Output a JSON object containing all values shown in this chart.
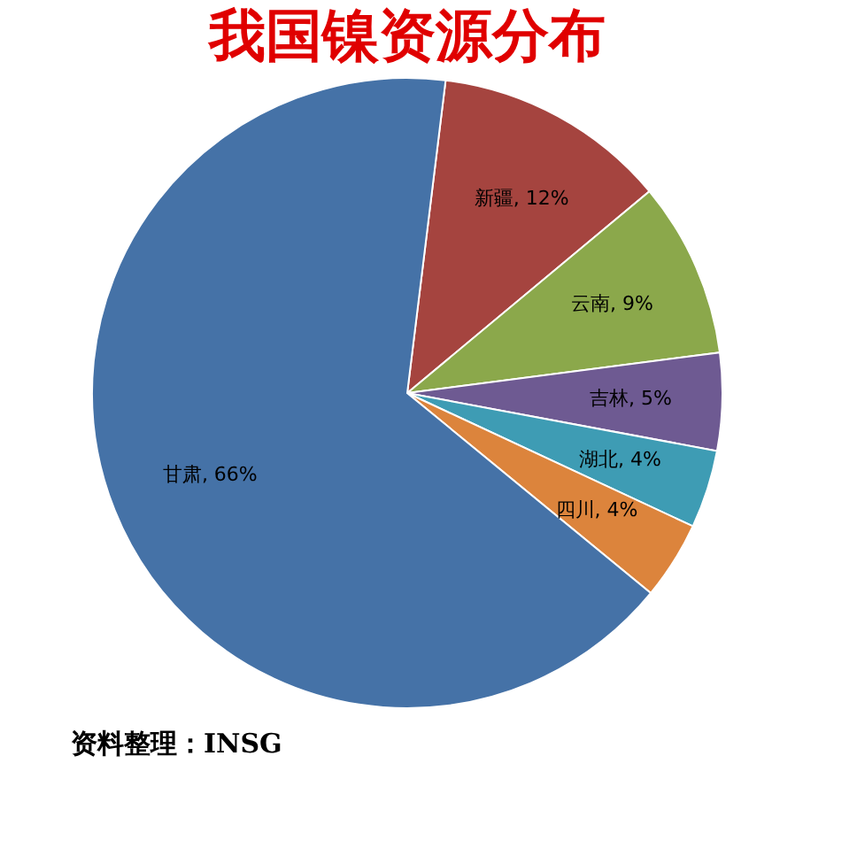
{
  "chart_data": {
    "type": "pie",
    "title": "我国镍资源分布",
    "categories": [
      "新疆",
      "云南",
      "吉林",
      "湖北",
      "四川",
      "甘肃"
    ],
    "values": [
      12,
      9,
      5,
      4,
      4,
      66
    ],
    "colors": [
      "#a5443f",
      "#8ba84b",
      "#6e5a92",
      "#3e9cb4",
      "#dc843c",
      "#4572a7"
    ],
    "value_labels": [
      ", 12%",
      ", 9%",
      ", 5%",
      ", 4%",
      ", 4%",
      ", 66%"
    ],
    "legend": false,
    "annotations": [
      "资料整理：INSG"
    ]
  }
}
